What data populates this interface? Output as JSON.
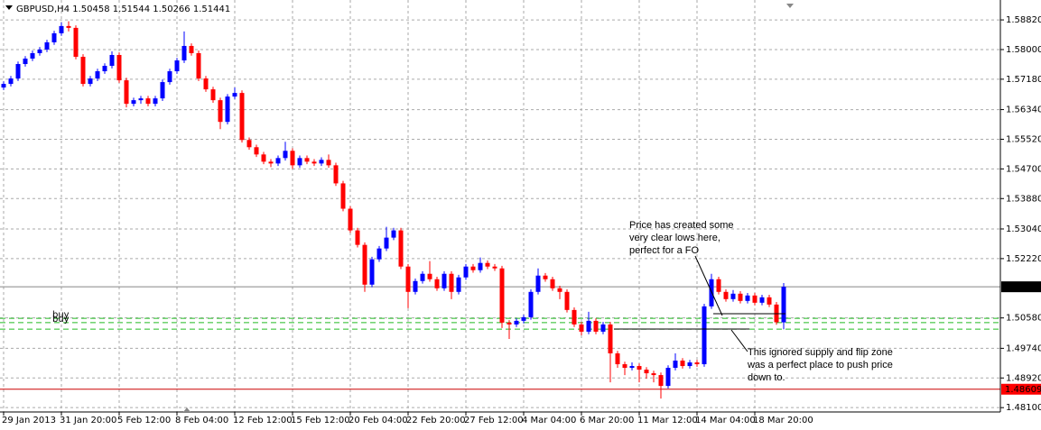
{
  "chart_data": {
    "type": "candlestick",
    "title": "GBPUSD,H4  1.50458 1.51544 1.50266 1.51441",
    "ylim": [
      1.4798,
      1.5937
    ],
    "yticks": [
      {
        "value": 1.5882,
        "label": "1.58820"
      },
      {
        "value": 1.58,
        "label": "1.58000"
      },
      {
        "value": 1.5718,
        "label": "1.57180"
      },
      {
        "value": 1.5634,
        "label": "1.56340"
      },
      {
        "value": 1.5552,
        "label": "1.55520"
      },
      {
        "value": 1.547,
        "label": "1.54700"
      },
      {
        "value": 1.5388,
        "label": "1.53880"
      },
      {
        "value": 1.5304,
        "label": "1.53040"
      },
      {
        "value": 1.5222,
        "label": "1.52220"
      },
      {
        "value": 1.5058,
        "label": "1.50580"
      },
      {
        "value": 1.4974,
        "label": "1.49740"
      },
      {
        "value": 1.4892,
        "label": "1.48920"
      },
      {
        "value": 1.481,
        "label": "1.48100"
      }
    ],
    "xticks": [
      {
        "value": 0,
        "label": "29 Jan 2013"
      },
      {
        "value": 8,
        "label": "31 Jan 20:00"
      },
      {
        "value": 16,
        "label": "5 Feb 12:00"
      },
      {
        "value": 24,
        "label": "8 Feb 04:00"
      },
      {
        "value": 32,
        "label": "12 Feb 12:00"
      },
      {
        "value": 40,
        "label": "15 Feb 12:00"
      },
      {
        "value": 48,
        "label": "20 Feb 04:00"
      },
      {
        "value": 56,
        "label": "22 Feb 20:00"
      },
      {
        "value": 64,
        "label": "27 Feb 12:00"
      },
      {
        "value": 72,
        "label": "4 Mar 04:00"
      },
      {
        "value": 80,
        "label": "6 Mar 20:00"
      },
      {
        "value": 88,
        "label": "11 Mar 12:00"
      },
      {
        "value": 96,
        "label": "14 Mar 04:00"
      },
      {
        "value": 104,
        "label": "18 Mar 20:00"
      }
    ],
    "grid": true,
    "up_color": "#0000ff",
    "down_color": "#ff0000",
    "current_price": 1.51441,
    "support_line": 1.48609,
    "order_levels": [
      1.5057,
      1.5045,
      1.5027
    ],
    "order_labels": [
      "buy",
      "buy"
    ],
    "annotations": [
      [
        "Price has created some",
        "very clear lows here,",
        "perfect for a FO"
      ],
      [
        "This ignored supply and flip zone",
        "was a perfect place to push price",
        "down to."
      ]
    ],
    "ohlc": [
      [
        1.5695,
        1.5712,
        1.5688,
        1.5705
      ],
      [
        1.5705,
        1.5727,
        1.5698,
        1.572
      ],
      [
        1.572,
        1.5767,
        1.5713,
        1.576
      ],
      [
        1.576,
        1.5782,
        1.5753,
        1.5775
      ],
      [
        1.5775,
        1.5797,
        1.5768,
        1.579
      ],
      [
        1.579,
        1.5807,
        1.5783,
        1.58
      ],
      [
        1.58,
        1.5827,
        1.5793,
        1.582
      ],
      [
        1.582,
        1.5852,
        1.5813,
        1.5845
      ],
      [
        1.5845,
        1.5875,
        1.5838,
        1.5865
      ],
      [
        1.5865,
        1.5878,
        1.585,
        1.586
      ],
      [
        1.586,
        1.5867,
        1.5773,
        1.578
      ],
      [
        1.578,
        1.5787,
        1.5698,
        1.5705
      ],
      [
        1.5705,
        1.5727,
        1.5698,
        1.572
      ],
      [
        1.572,
        1.5747,
        1.5713,
        1.574
      ],
      [
        1.574,
        1.5762,
        1.5733,
        1.5755
      ],
      [
        1.5755,
        1.5795,
        1.5748,
        1.5785
      ],
      [
        1.5785,
        1.5792,
        1.5708,
        1.5715
      ],
      [
        1.5715,
        1.5722,
        1.564,
        1.565
      ],
      [
        1.565,
        1.5667,
        1.5643,
        1.566
      ],
      [
        1.566,
        1.5672,
        1.565,
        1.5665
      ],
      [
        1.5665,
        1.5672,
        1.5643,
        1.565
      ],
      [
        1.565,
        1.5672,
        1.5643,
        1.5665
      ],
      [
        1.5665,
        1.5717,
        1.5658,
        1.571
      ],
      [
        1.571,
        1.5747,
        1.5703,
        1.574
      ],
      [
        1.574,
        1.5777,
        1.5733,
        1.577
      ],
      [
        1.577,
        1.585,
        1.5763,
        1.581
      ],
      [
        1.581,
        1.5817,
        1.5783,
        1.579
      ],
      [
        1.579,
        1.5797,
        1.5713,
        1.572
      ],
      [
        1.572,
        1.5727,
        1.5683,
        1.569
      ],
      [
        1.569,
        1.5697,
        1.5653,
        1.566
      ],
      [
        1.566,
        1.5667,
        1.558,
        1.56
      ],
      [
        1.56,
        1.5677,
        1.5593,
        1.567
      ],
      [
        1.567,
        1.5695,
        1.5663,
        1.568
      ],
      [
        1.568,
        1.5687,
        1.5543,
        1.555
      ],
      [
        1.555,
        1.5557,
        1.5523,
        1.553
      ],
      [
        1.553,
        1.5537,
        1.5503,
        1.551
      ],
      [
        1.551,
        1.5517,
        1.5483,
        1.549
      ],
      [
        1.549,
        1.5497,
        1.5475,
        1.5485
      ],
      [
        1.5485,
        1.5507,
        1.5478,
        1.55
      ],
      [
        1.55,
        1.5545,
        1.5493,
        1.552
      ],
      [
        1.552,
        1.5527,
        1.547,
        1.548
      ],
      [
        1.548,
        1.5507,
        1.5473,
        1.55
      ],
      [
        1.55,
        1.5507,
        1.5483,
        1.549
      ],
      [
        1.549,
        1.5497,
        1.5478,
        1.5485
      ],
      [
        1.5485,
        1.5502,
        1.5478,
        1.5495
      ],
      [
        1.5495,
        1.551,
        1.5473,
        1.548
      ],
      [
        1.548,
        1.5487,
        1.5423,
        1.543
      ],
      [
        1.543,
        1.5437,
        1.5353,
        1.536
      ],
      [
        1.536,
        1.5367,
        1.5293,
        1.53
      ],
      [
        1.53,
        1.5307,
        1.5253,
        1.526
      ],
      [
        1.526,
        1.5267,
        1.513,
        1.515
      ],
      [
        1.515,
        1.5227,
        1.5143,
        1.522
      ],
      [
        1.522,
        1.5257,
        1.5213,
        1.525
      ],
      [
        1.525,
        1.531,
        1.5243,
        1.528
      ],
      [
        1.528,
        1.5307,
        1.5273,
        1.53
      ],
      [
        1.53,
        1.5307,
        1.5193,
        1.52
      ],
      [
        1.52,
        1.5207,
        1.5085,
        1.513
      ],
      [
        1.513,
        1.5167,
        1.5123,
        1.516
      ],
      [
        1.516,
        1.5187,
        1.5153,
        1.518
      ],
      [
        1.518,
        1.5215,
        1.5158,
        1.5165
      ],
      [
        1.5165,
        1.5172,
        1.5133,
        1.514
      ],
      [
        1.514,
        1.5187,
        1.5133,
        1.518
      ],
      [
        1.518,
        1.5187,
        1.511,
        1.513
      ],
      [
        1.513,
        1.5177,
        1.5123,
        1.517
      ],
      [
        1.517,
        1.5207,
        1.5163,
        1.52
      ],
      [
        1.52,
        1.5207,
        1.5183,
        1.519
      ],
      [
        1.519,
        1.5225,
        1.5183,
        1.521
      ],
      [
        1.521,
        1.5217,
        1.5193,
        1.52
      ],
      [
        1.52,
        1.5207,
        1.5188,
        1.5195
      ],
      [
        1.5195,
        1.5202,
        1.503,
        1.5045
      ],
      [
        1.5045,
        1.5052,
        1.5,
        1.504
      ],
      [
        1.504,
        1.5057,
        1.5033,
        1.505
      ],
      [
        1.505,
        1.5067,
        1.5043,
        1.506
      ],
      [
        1.506,
        1.5137,
        1.5053,
        1.513
      ],
      [
        1.513,
        1.5195,
        1.5123,
        1.5175
      ],
      [
        1.5175,
        1.5182,
        1.5158,
        1.5165
      ],
      [
        1.5165,
        1.5172,
        1.5133,
        1.514
      ],
      [
        1.514,
        1.5147,
        1.511,
        1.513
      ],
      [
        1.513,
        1.5137,
        1.5073,
        1.508
      ],
      [
        1.508,
        1.5087,
        1.5033,
        1.504
      ],
      [
        1.504,
        1.5047,
        1.501,
        1.502
      ],
      [
        1.502,
        1.5075,
        1.5013,
        1.505
      ],
      [
        1.505,
        1.5057,
        1.5013,
        1.502
      ],
      [
        1.502,
        1.5047,
        1.5013,
        1.504
      ],
      [
        1.504,
        1.5047,
        1.488,
        1.496
      ],
      [
        1.496,
        1.4967,
        1.492,
        1.493
      ],
      [
        1.493,
        1.4937,
        1.49,
        1.492
      ],
      [
        1.492,
        1.4935,
        1.4913,
        1.4925
      ],
      [
        1.4925,
        1.4932,
        1.488,
        1.4915
      ],
      [
        1.4915,
        1.4922,
        1.489,
        1.4905
      ],
      [
        1.4905,
        1.4912,
        1.488,
        1.49
      ],
      [
        1.49,
        1.4907,
        1.4835,
        1.487
      ],
      [
        1.487,
        1.4927,
        1.4863,
        1.492
      ],
      [
        1.492,
        1.496,
        1.4913,
        1.494
      ],
      [
        1.494,
        1.4947,
        1.4918,
        1.4925
      ],
      [
        1.4925,
        1.4942,
        1.4918,
        1.4935
      ],
      [
        1.4935,
        1.4942,
        1.4923,
        1.493
      ],
      [
        1.493,
        1.5097,
        1.4923,
        1.509
      ],
      [
        1.509,
        1.518,
        1.5083,
        1.5165
      ],
      [
        1.5165,
        1.5172,
        1.5123,
        1.513
      ],
      [
        1.513,
        1.5137,
        1.5103,
        1.511
      ],
      [
        1.511,
        1.5135,
        1.5103,
        1.5125
      ],
      [
        1.5125,
        1.5132,
        1.5098,
        1.5105
      ],
      [
        1.5105,
        1.5127,
        1.5098,
        1.512
      ],
      [
        1.512,
        1.5127,
        1.5093,
        1.51
      ],
      [
        1.51,
        1.5122,
        1.5093,
        1.5115
      ],
      [
        1.5115,
        1.5122,
        1.5088,
        1.5095
      ],
      [
        1.5095,
        1.5102,
        1.5039,
        1.5046
      ],
      [
        1.50458,
        1.51544,
        1.50266,
        1.51441
      ]
    ]
  }
}
